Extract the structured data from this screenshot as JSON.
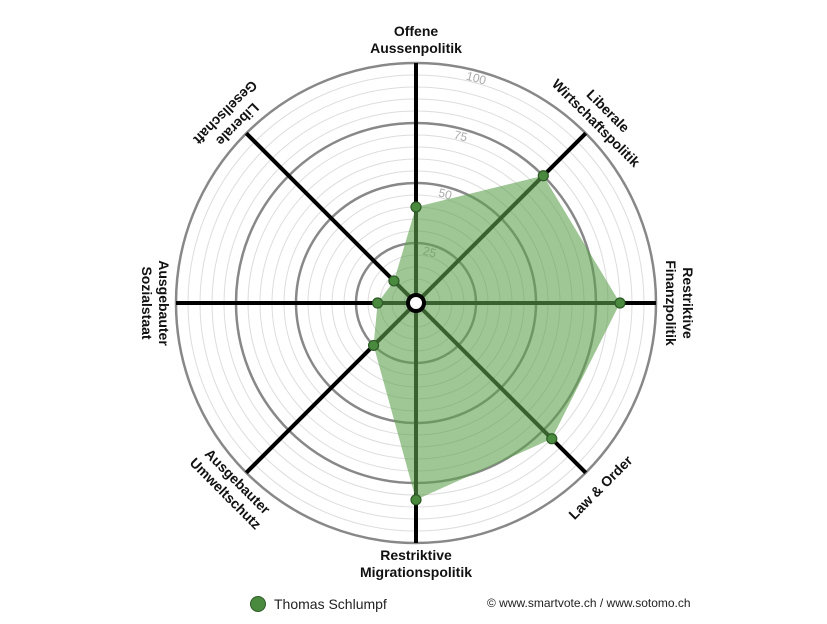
{
  "chart_data": {
    "type": "radar",
    "axes": [
      {
        "label": [
          "Offene",
          "Aussenpolitik"
        ],
        "value": 40
      },
      {
        "label": [
          "Liberale",
          "Wirtschaftspolitik"
        ],
        "value": 75
      },
      {
        "label": [
          "Restriktive",
          "Finanzpolitik"
        ],
        "value": 85
      },
      {
        "label": [
          "Law & Order"
        ],
        "value": 80
      },
      {
        "label": [
          "Restriktive",
          "Migrationspolitik"
        ],
        "value": 82
      },
      {
        "label": [
          "Ausgebauter",
          "Umweltschutz"
        ],
        "value": 25
      },
      {
        "label": [
          "Ausgebauter",
          "Sozialstaat"
        ],
        "value": 16
      },
      {
        "label": [
          "Liberale",
          "Gesellschaft"
        ],
        "value": 13
      }
    ],
    "ticks": [
      "25",
      "50",
      "75",
      "100"
    ],
    "range": [
      0,
      100
    ],
    "series": [
      {
        "name": "Thomas Schlumpf",
        "color": "#4a8a3f"
      }
    ],
    "colors": {
      "fill": "#5fa14f",
      "stroke": "#2d5a26",
      "point": "#4a8a3f",
      "spoke": "#000000",
      "ring_major": "#888888",
      "ring_minor": "#dddddd"
    }
  },
  "legend": {
    "label": "Thomas Schlumpf"
  },
  "copyright": "© www.smartvote.ch / www.sotomo.ch"
}
